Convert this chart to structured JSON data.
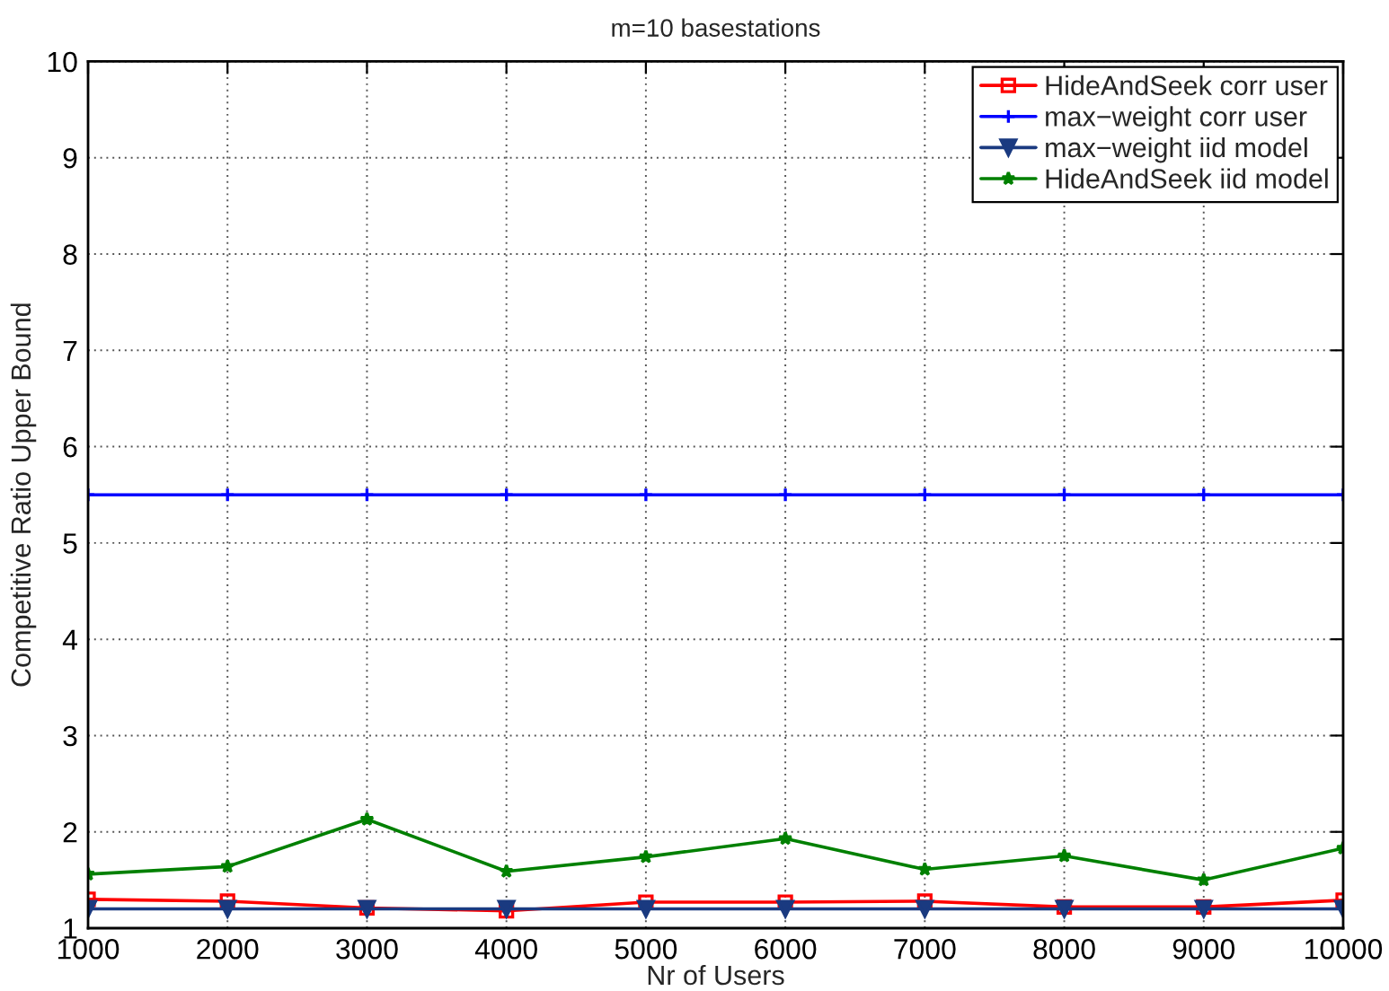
{
  "chart_data": {
    "type": "line",
    "title": "m=10 basestations",
    "xlabel": "Nr of Users",
    "ylabel": "Competitive Ratio Upper Bound",
    "x": [
      1000,
      2000,
      3000,
      4000,
      5000,
      6000,
      7000,
      8000,
      9000,
      10000
    ],
    "series": [
      {
        "name": "HideAndSeek corr user",
        "color": "#ff0000",
        "marker": "square",
        "values": [
          1.3,
          1.28,
          1.21,
          1.18,
          1.27,
          1.27,
          1.28,
          1.22,
          1.22,
          1.29
        ]
      },
      {
        "name": "max−weight corr user",
        "color": "#0000ff",
        "marker": "cross",
        "values": [
          5.5,
          5.5,
          5.5,
          5.5,
          5.5,
          5.5,
          5.5,
          5.5,
          5.5,
          5.5
        ]
      },
      {
        "name": "max−weight iid model",
        "color": "#1a3a80",
        "marker": "triangle",
        "values": [
          1.2,
          1.2,
          1.2,
          1.2,
          1.2,
          1.2,
          1.2,
          1.2,
          1.2,
          1.2
        ]
      },
      {
        "name": "HideAndSeek iid model",
        "color": "#008000",
        "marker": "star",
        "values": [
          1.56,
          1.64,
          2.13,
          1.59,
          1.74,
          1.93,
          1.61,
          1.75,
          1.5,
          1.83
        ]
      }
    ],
    "xlim": [
      1000,
      10000
    ],
    "ylim": [
      1,
      10
    ],
    "xticks": [
      1000,
      2000,
      3000,
      4000,
      5000,
      6000,
      7000,
      8000,
      9000,
      10000
    ],
    "yticks": [
      1,
      2,
      3,
      4,
      5,
      6,
      7,
      8,
      9,
      10
    ],
    "grid": true,
    "legend": "top right",
    "line_style": "solid"
  }
}
